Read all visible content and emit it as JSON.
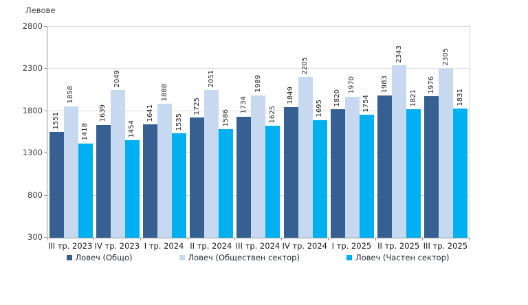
{
  "chart_data": {
    "type": "bar",
    "title": "",
    "y_axis_title": "Левове",
    "ylabel": "Левове",
    "xlabel": "",
    "ylim": [
      300,
      2800
    ],
    "yticks": [
      300,
      800,
      1300,
      1800,
      2300,
      2800
    ],
    "grid": true,
    "legend_position": "bottom",
    "value_labels": "rotated-90-above-bars",
    "categories": [
      "III тр. 2023",
      "IV тр. 2023",
      "I тр. 2024",
      "II тр. 2024",
      "III тр. 2024",
      "IV тр. 2024",
      "I тр. 2025",
      "II тр. 2025",
      "III тр. 2025"
    ],
    "series": [
      {
        "name": "Ловеч (Общо)",
        "color": "#376092",
        "values": [
          1551,
          1639,
          1641,
          1725,
          1734,
          1849,
          1820,
          1983,
          1976
        ]
      },
      {
        "name": "Ловеч (Обществен сектор)",
        "color": "#C6D9F1",
        "values": [
          1858,
          2049,
          1888,
          2051,
          1989,
          2205,
          1970,
          2343,
          2305
        ]
      },
      {
        "name": "Ловеч (Частен сектор)",
        "color": "#00B0F0",
        "values": [
          1418,
          1454,
          1535,
          1586,
          1625,
          1695,
          1754,
          1821,
          1831
        ]
      }
    ]
  }
}
